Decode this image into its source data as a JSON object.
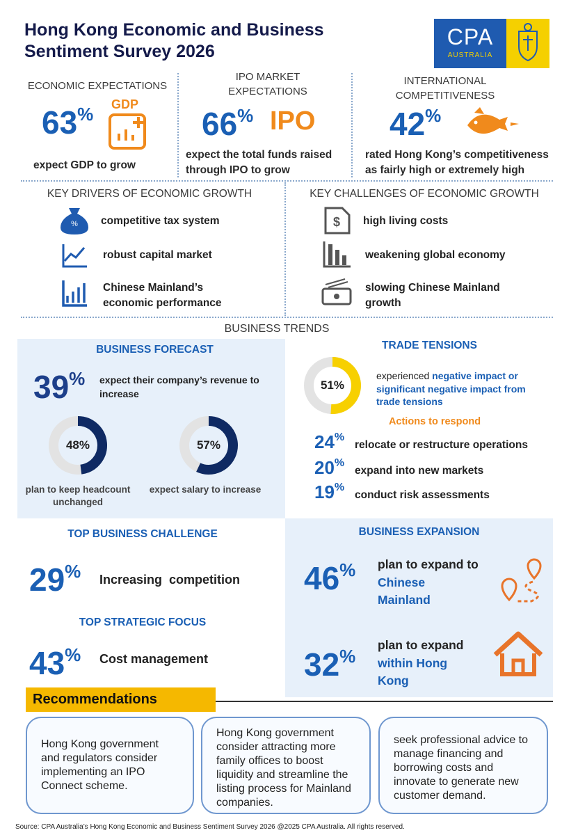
{
  "header": {
    "title": "Hong Kong Economic and Business Sentiment Survey 2026",
    "logo_text": "CPA",
    "logo_subtext": "AUSTRALIA"
  },
  "top_stats": [
    {
      "heading": "ECONOMIC EXPECTATIONS",
      "value": 63,
      "unit": "%",
      "tag": "GDP",
      "caption": "expect GDP to grow"
    },
    {
      "heading": "IPO MARKET EXPECTATIONS",
      "value": 66,
      "unit": "%",
      "tag": "IPO",
      "caption": "expect the total funds raised through IPO to grow"
    },
    {
      "heading": "INTERNATIONAL COMPETITIVENESS",
      "value": 42,
      "unit": "%",
      "caption": "rated Hong Kong’s competitiveness as fairly high or extremely high"
    }
  ],
  "drivers": {
    "heading": "KEY DRIVERS OF ECONOMIC GROWTH",
    "items": [
      "competitive tax system",
      "robust capital market",
      "Chinese Mainland’s economic performance"
    ]
  },
  "challenges": {
    "heading": "KEY CHALLENGES OF ECONOMIC GROWTH",
    "items": [
      "high living costs",
      "weakening global economy",
      "slowing Chinese Mainland growth"
    ]
  },
  "business_trends": {
    "heading": "BUSINESS TRENDS",
    "forecast": {
      "heading": "BUSINESS FORECAST",
      "value": 39,
      "unit": "%",
      "caption": "expect their company’s revenue to increase",
      "donuts": [
        {
          "value": 48,
          "unit": "%",
          "caption": "plan to keep headcount unchanged"
        },
        {
          "value": 57,
          "unit": "%",
          "caption": "expect salary to increase"
        }
      ]
    },
    "trade": {
      "heading": "TRADE TENSIONS",
      "value": 51,
      "unit": "%",
      "caption_lead": "experienced",
      "caption_highlight": "negative impact or significant negative impact from trade tensions",
      "actions_heading": "Actions to respond",
      "actions": [
        {
          "value": 24,
          "unit": "%",
          "label": "relocate or restructure operations"
        },
        {
          "value": 20,
          "unit": "%",
          "label": "expand into new markets"
        },
        {
          "value": 19,
          "unit": "%",
          "label": "conduct risk assessments"
        }
      ]
    },
    "challenge": {
      "heading": "TOP BUSINESS CHALLENGE",
      "value": 29,
      "unit": "%",
      "label": "Increasing  competition"
    },
    "focus": {
      "heading": "TOP STRATEGIC FOCUS",
      "value": 43,
      "unit": "%",
      "label": "Cost management"
    },
    "expansion": {
      "heading": "BUSINESS EXPANSION",
      "items": [
        {
          "value": 46,
          "unit": "%",
          "lead": "plan to expand to",
          "highlight": "Chinese Mainland"
        },
        {
          "value": 32,
          "unit": "%",
          "lead": "plan to expand",
          "highlight": "within Hong Kong"
        }
      ]
    }
  },
  "recommendations": {
    "heading": "Recommendations",
    "items": [
      "Hong Kong government and regulators consider implementing an IPO Connect scheme.",
      "Hong Kong government consider attracting more family offices to boost liquidity and streamline the listing process for Mainland companies.",
      "seek professional advice to manage financing and borrowing costs and innovate to generate new customer demand."
    ]
  },
  "footer": {
    "source": "Source: CPA Australia’s Hong Kong Economic and Business Sentiment Survey 2026 @2025 CPA Australia. All rights reserved."
  }
}
